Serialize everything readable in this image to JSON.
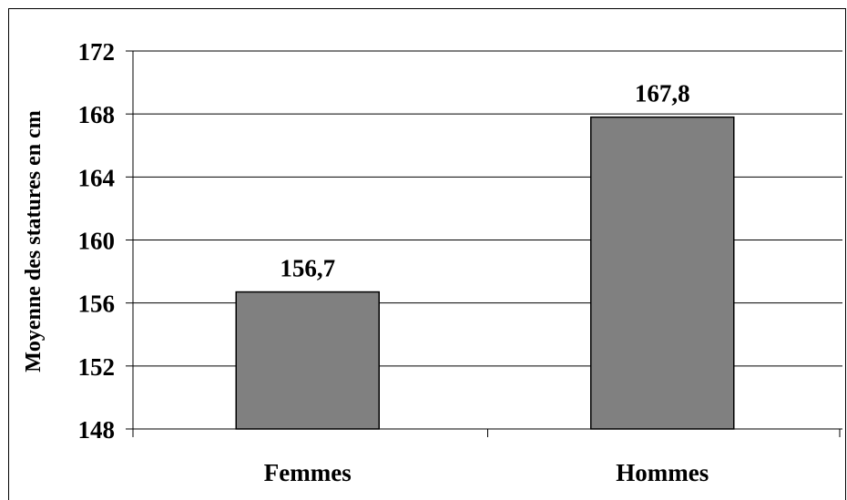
{
  "chart_data": {
    "type": "bar",
    "categories": [
      "Femmes",
      "Hommes"
    ],
    "values": [
      156.7,
      167.8
    ],
    "value_labels": [
      "156,7",
      "167,8"
    ],
    "ylabel": "Moyenne des statures en cm",
    "ylim": [
      148,
      172
    ],
    "yticks": [
      148,
      152,
      156,
      160,
      164,
      168,
      172
    ],
    "grid": true,
    "legend": "none",
    "bar_color": "#808080"
  }
}
